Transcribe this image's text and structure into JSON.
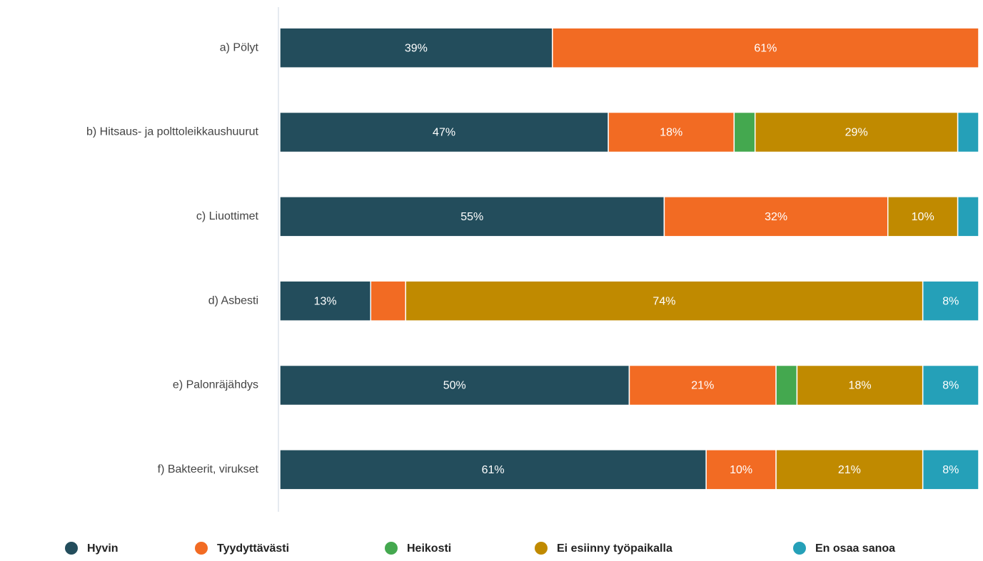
{
  "chart_data": {
    "type": "stacked-barh",
    "categories": [
      "a) Pölyt",
      "b) Hitsaus- ja polttoleikkaushuurut",
      "c) Liuottimet",
      "d) Asbesti",
      "e) Palonräjähdys",
      "f) Bakteerit, virukset"
    ],
    "series": [
      {
        "name": "Hyvin",
        "color": "#234d5c",
        "values": [
          39,
          47,
          55,
          13,
          50,
          61
        ],
        "value_labels": [
          "39%",
          "47%",
          "55%",
          "13%",
          "50%",
          "61%"
        ]
      },
      {
        "name": "Tyydyttävästi",
        "color": "#f26b23",
        "values": [
          61,
          18,
          32,
          5,
          21,
          10
        ],
        "value_labels": [
          "61%",
          "18%",
          "32%",
          null,
          "21%",
          "10%"
        ]
      },
      {
        "name": "Heikosti",
        "color": "#44a84f",
        "values": [
          0,
          3,
          0,
          0,
          3,
          0
        ],
        "value_labels": [
          null,
          null,
          null,
          null,
          null,
          null
        ]
      },
      {
        "name": "Ei esiinny työpaikalla",
        "color": "#c08a00",
        "values": [
          0,
          29,
          10,
          74,
          18,
          21
        ],
        "value_labels": [
          null,
          "29%",
          "10%",
          "74%",
          "18%",
          "21%"
        ]
      },
      {
        "name": "En osaa sanoa",
        "color": "#25a0b8",
        "values": [
          0,
          3,
          3,
          8,
          8,
          8
        ],
        "value_labels": [
          null,
          null,
          null,
          "8%",
          "8%",
          "8%"
        ]
      }
    ],
    "xlim": [
      0,
      100
    ],
    "legend": "bottom"
  }
}
